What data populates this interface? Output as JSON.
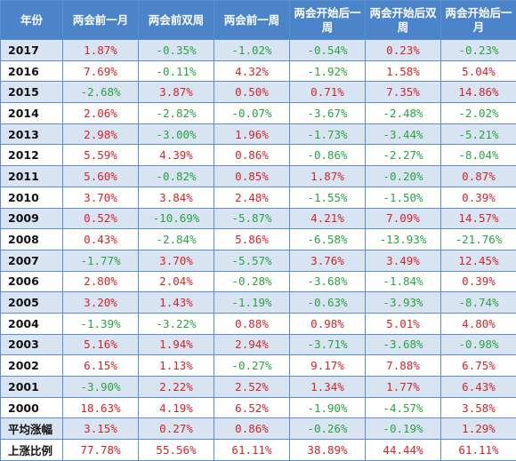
{
  "table": {
    "headers": [
      "年份",
      "两会前一月",
      "两会前双周",
      "两会前一周",
      "两会开始后一周",
      "两会开始后双周",
      "两会开始后一月"
    ],
    "rows": [
      {
        "label": "2017",
        "values": [
          "1.87%",
          "-0.35%",
          "-1.02%",
          "-0.54%",
          "0.23%",
          "-0.23%"
        ]
      },
      {
        "label": "2016",
        "values": [
          "7.69%",
          "-0.11%",
          "4.32%",
          "-1.92%",
          "1.58%",
          "5.04%"
        ]
      },
      {
        "label": "2015",
        "values": [
          "-2.68%",
          "3.87%",
          "0.50%",
          "0.71%",
          "7.35%",
          "14.86%"
        ]
      },
      {
        "label": "2014",
        "values": [
          "2.06%",
          "-2.82%",
          "-0.07%",
          "-3.67%",
          "-2.48%",
          "-2.02%"
        ]
      },
      {
        "label": "2013",
        "values": [
          "2.98%",
          "-3.00%",
          "1.96%",
          "-1.73%",
          "-3.44%",
          "-5.21%"
        ]
      },
      {
        "label": "2012",
        "values": [
          "5.59%",
          "4.39%",
          "0.86%",
          "-0.86%",
          "-2.27%",
          "-8.04%"
        ]
      },
      {
        "label": "2011",
        "values": [
          "5.60%",
          "-0.82%",
          "0.85%",
          "1.87%",
          "-0.20%",
          "0.87%"
        ]
      },
      {
        "label": "2010",
        "values": [
          "3.70%",
          "3.84%",
          "2.48%",
          "-1.55%",
          "-1.50%",
          "0.39%"
        ]
      },
      {
        "label": "2009",
        "values": [
          "0.52%",
          "-10.69%",
          "-5.87%",
          "4.21%",
          "7.09%",
          "14.57%"
        ]
      },
      {
        "label": "2008",
        "values": [
          "0.43%",
          "-2.84%",
          "5.86%",
          "-6.58%",
          "-13.93%",
          "-21.76%"
        ]
      },
      {
        "label": "2007",
        "values": [
          "-1.77%",
          "3.70%",
          "-5.57%",
          "3.76%",
          "3.49%",
          "12.45%"
        ]
      },
      {
        "label": "2006",
        "values": [
          "2.80%",
          "2.04%",
          "-0.28%",
          "-3.68%",
          "-1.84%",
          "0.39%"
        ]
      },
      {
        "label": "2005",
        "values": [
          "3.20%",
          "1.43%",
          "-1.19%",
          "-0.63%",
          "-3.93%",
          "-8.74%"
        ]
      },
      {
        "label": "2004",
        "values": [
          "-1.39%",
          "-3.22%",
          "0.88%",
          "0.98%",
          "5.01%",
          "4.80%"
        ]
      },
      {
        "label": "2003",
        "values": [
          "5.16%",
          "1.94%",
          "2.94%",
          "-3.71%",
          "-3.68%",
          "-0.98%"
        ]
      },
      {
        "label": "2002",
        "values": [
          "6.15%",
          "1.13%",
          "-0.27%",
          "9.17%",
          "7.88%",
          "6.75%"
        ]
      },
      {
        "label": "2001",
        "values": [
          "-3.90%",
          "2.22%",
          "2.52%",
          "1.34%",
          "1.77%",
          "6.43%"
        ]
      },
      {
        "label": "2000",
        "values": [
          "18.63%",
          "4.19%",
          "6.52%",
          "-1.90%",
          "-4.57%",
          "3.58%"
        ]
      },
      {
        "label": "平均涨幅",
        "values": [
          "3.15%",
          "0.27%",
          "0.86%",
          "-0.26%",
          "-0.19%",
          "1.29%"
        ]
      },
      {
        "label": "上涨比例",
        "values": [
          "77.78%",
          "55.56%",
          "61.11%",
          "38.89%",
          "44.44%",
          "61.11%"
        ]
      }
    ]
  },
  "colors": {
    "header_bg": "#4b84c8",
    "header_text": "#ffffff",
    "row_alt_bg": "#d9e4f3",
    "row_plain_bg": "#ffffff",
    "grid_line": "#5b8fd0",
    "positive_text": "#d4242a",
    "negative_text": "#2aa341",
    "label_text": "#111111"
  }
}
